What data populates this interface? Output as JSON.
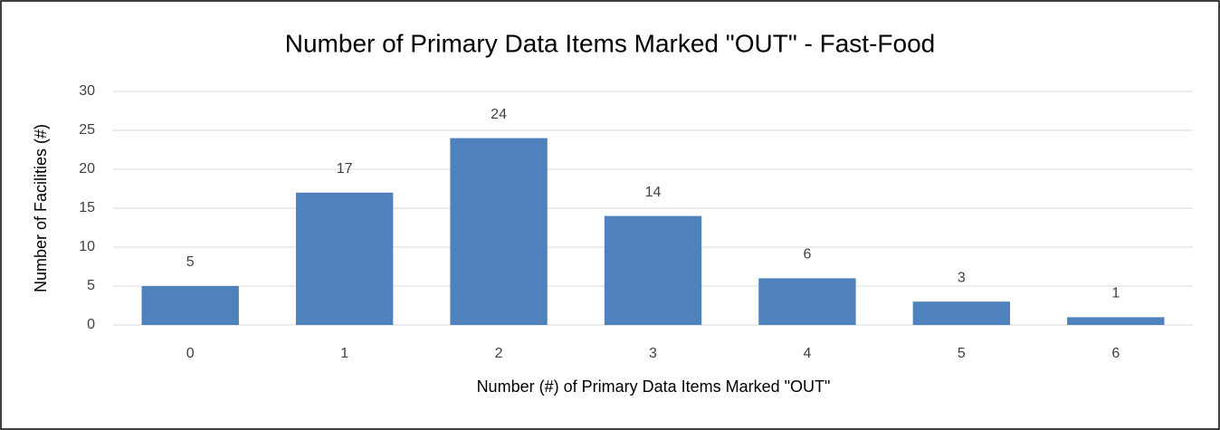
{
  "chart_data": {
    "type": "bar",
    "title": "Number of Primary Data Items Marked \"OUT\" - Fast-Food",
    "x_label": "Number (#) of Primary Data Items Marked \"OUT\"",
    "y_label": "Number of Facilities (#)",
    "categories": [
      "0",
      "1",
      "2",
      "3",
      "4",
      "5",
      "6"
    ],
    "values": [
      5,
      17,
      24,
      14,
      6,
      3,
      1
    ],
    "color": "#4f81bd",
    "ylim": [
      0,
      30
    ],
    "yticks": [
      0,
      5,
      10,
      15,
      20,
      25,
      30
    ],
    "grid": true
  }
}
